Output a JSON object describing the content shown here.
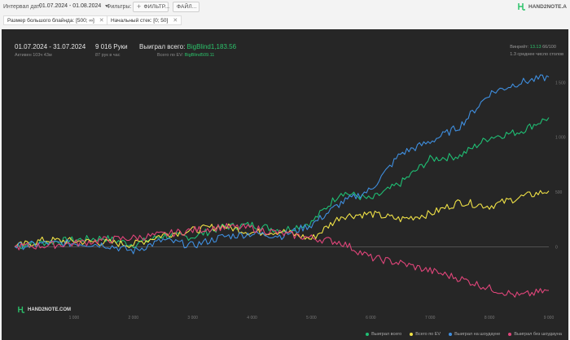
{
  "topbar": {
    "date_label": "Интервал дат:",
    "date_value": "01.07.2024 - 01.08.2024",
    "filters_label": "Фильтры:",
    "filters_button": "ФИЛЬТР...",
    "file_button": "ФАЙЛ...",
    "logo_text": "HAND2NOTE.A"
  },
  "chips": [
    {
      "label": "Размер большого блайнда: [500; ∞]"
    },
    {
      "label": "Начальный стек: [0; 50]"
    }
  ],
  "summary": {
    "period": "01.07.2024 - 31.07.2024",
    "active": "Активен 103ч 43м",
    "hands": "9 016 Руки",
    "hands_rate": "87 рук в час",
    "won_total_label": "Выиграл всего:",
    "won_total_value": "BigBlind1,183.56",
    "ev_label": "Всего по EV:",
    "ev_value": "BigBlind509.11",
    "winrate_label": "Винрейт:",
    "winrate_value": "13.13",
    "winrate_ratio": "66/100",
    "tables": "1.3 среднее число столов"
  },
  "watermark": "HAND2NOTE.COM",
  "colors": {
    "won": "#1fbf74",
    "ev": "#f0e246",
    "showdown": "#3f8fe0",
    "nonshowdown": "#e0457a"
  },
  "chart_data": {
    "type": "line",
    "xlim": [
      0,
      9000
    ],
    "ylim": [
      -600,
      1600
    ],
    "x_ticks": [
      "1 000",
      "2 000",
      "3 000",
      "4 000",
      "5 000",
      "6 000",
      "7 000",
      "8 000",
      "9 000"
    ],
    "y_ticks": [
      "1 500",
      "1 000",
      "500",
      "0"
    ],
    "legend_placement": "bottom-right",
    "series": [
      {
        "name": "Выиграл всего",
        "color": "#1fbf74",
        "x": [
          0,
          500,
          1000,
          1500,
          2000,
          2500,
          3000,
          3500,
          4000,
          4500,
          5000,
          5500,
          6000,
          6500,
          7000,
          7500,
          8000,
          8500,
          9000
        ],
        "y": [
          0,
          40,
          60,
          80,
          20,
          100,
          90,
          180,
          200,
          150,
          220,
          500,
          430,
          580,
          800,
          830,
          1000,
          1050,
          1180
        ]
      },
      {
        "name": "Всего по EV",
        "color": "#f0e246",
        "x": [
          0,
          500,
          1000,
          1500,
          2000,
          2500,
          3000,
          3500,
          4000,
          4500,
          5000,
          5500,
          6000,
          6500,
          7000,
          7500,
          8000,
          8500,
          9000
        ],
        "y": [
          0,
          60,
          50,
          40,
          20,
          110,
          150,
          190,
          130,
          140,
          70,
          280,
          300,
          250,
          300,
          410,
          370,
          450,
          510
        ]
      },
      {
        "name": "Выиграл на шоудауне",
        "color": "#3f8fe0",
        "x": [
          0,
          500,
          1000,
          1500,
          2000,
          2500,
          3000,
          3500,
          4000,
          4500,
          5000,
          5500,
          6000,
          6500,
          7000,
          7500,
          8000,
          8500,
          9000
        ],
        "y": [
          0,
          30,
          30,
          20,
          -40,
          60,
          10,
          90,
          120,
          100,
          200,
          400,
          520,
          850,
          960,
          1100,
          1400,
          1500,
          1550
        ]
      },
      {
        "name": "Выиграл без шоудауна",
        "color": "#e0457a",
        "x": [
          0,
          500,
          1000,
          1500,
          2000,
          2500,
          3000,
          3500,
          4000,
          4500,
          5000,
          5500,
          6000,
          6500,
          7000,
          7500,
          8000,
          8500,
          9000
        ],
        "y": [
          0,
          10,
          30,
          60,
          80,
          110,
          150,
          180,
          170,
          120,
          80,
          40,
          -100,
          -150,
          -220,
          -290,
          -380,
          -450,
          -400
        ]
      }
    ]
  }
}
